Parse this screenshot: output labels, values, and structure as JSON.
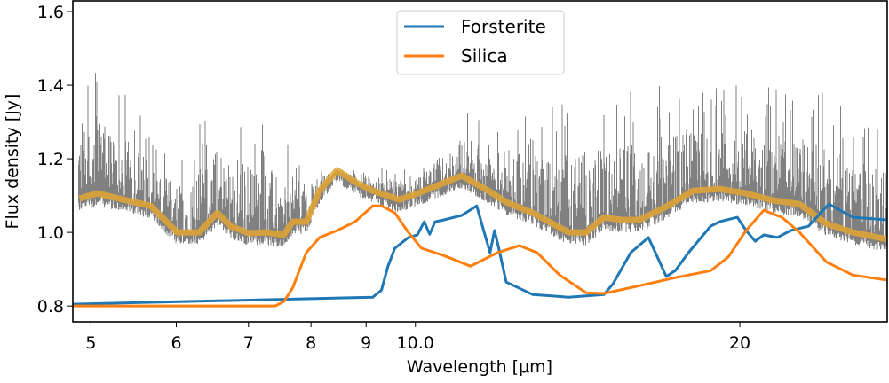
{
  "chart_data": {
    "type": "line",
    "title": "",
    "xlabel": "Wavelength [μm]",
    "ylabel": "Flux density [Jy]",
    "xscale": "log",
    "xlim": [
      4.81,
      27.4
    ],
    "ylim": [
      0.757,
      1.629
    ],
    "xticks": [
      5,
      6,
      7,
      8,
      9,
      10,
      20
    ],
    "xtick_labels": [
      "5",
      "6",
      "7",
      "8",
      "9",
      "10.0",
      "20"
    ],
    "yticks": [
      0.8,
      1.0,
      1.2,
      1.4,
      1.6
    ],
    "ytick_labels": [
      "0.8",
      "1.0",
      "1.2",
      "1.4",
      "1.6"
    ],
    "grid": false,
    "legend_position": "top-center",
    "series": [
      {
        "name": "Forsterite",
        "color": "#1f77b4",
        "x": [
          4.8,
          9.13,
          9.3,
          9.43,
          9.57,
          9.85,
          10.04,
          10.19,
          10.31,
          10.43,
          10.63,
          11.04,
          11.4,
          11.57,
          11.73,
          11.84,
          11.95,
          12.14,
          12.85,
          13.87,
          14.96,
          15.25,
          15.84,
          16.45,
          16.77,
          17.09,
          17.42,
          17.92,
          18.79,
          19.15,
          19.89,
          20.27,
          20.67,
          21.05,
          21.67,
          22.3,
          23.16,
          24.19,
          25.46,
          27.42
        ],
        "y": [
          0.805,
          0.824,
          0.843,
          0.908,
          0.957,
          0.986,
          0.993,
          1.029,
          0.995,
          1.029,
          1.034,
          1.046,
          1.072,
          1.005,
          0.945,
          1.005,
          0.957,
          0.865,
          0.831,
          0.824,
          0.831,
          0.86,
          0.945,
          0.986,
          0.933,
          0.88,
          0.896,
          0.945,
          1.017,
          1.029,
          1.041,
          1.005,
          0.976,
          0.993,
          0.986,
          1.005,
          1.017,
          1.077,
          1.041,
          1.034
        ]
      },
      {
        "name": "Silica",
        "color": "#ff7f0e",
        "x": [
          4.8,
          7.41,
          7.55,
          7.69,
          7.92,
          8.15,
          8.46,
          8.79,
          9.13,
          9.3,
          9.57,
          9.85,
          10.13,
          10.63,
          11.25,
          11.91,
          12.49,
          12.97,
          13.61,
          14.4,
          14.96,
          16.14,
          17.42,
          18.79,
          19.51,
          20.27,
          21.05,
          21.88,
          22.72,
          24.05,
          25.46,
          27.42
        ],
        "y": [
          0.8,
          0.8,
          0.812,
          0.848,
          0.945,
          0.986,
          1.005,
          1.029,
          1.072,
          1.072,
          1.053,
          1.0,
          0.957,
          0.937,
          0.908,
          0.945,
          0.964,
          0.945,
          0.884,
          0.836,
          0.834,
          0.855,
          0.877,
          0.896,
          0.933,
          1.005,
          1.06,
          1.041,
          1.0,
          0.92,
          0.884,
          0.87
        ]
      },
      {
        "color": "#e3a634",
        "x": [
          4.88,
          5.07,
          5.36,
          5.68,
          6.01,
          6.3,
          6.55,
          6.74,
          7.0,
          7.27,
          7.55,
          7.69,
          7.92,
          8.15,
          8.46,
          8.79,
          9.13,
          9.66,
          9.94,
          10.43,
          11.04,
          11.69,
          12.14,
          12.85,
          13.87,
          14.4,
          14.96,
          15.54,
          16.14,
          17.09,
          18.09,
          19.15,
          20.27,
          21.46,
          22.72,
          24.05,
          25.46,
          27.42
        ],
        "y": [
          1.092,
          1.106,
          1.089,
          1.072,
          1.0,
          1.0,
          1.053,
          1.017,
          0.998,
          1.0,
          0.993,
          1.029,
          1.029,
          1.113,
          1.169,
          1.137,
          1.113,
          1.089,
          1.101,
          1.125,
          1.154,
          1.113,
          1.082,
          1.053,
          1.0,
          1.0,
          1.041,
          1.034,
          1.034,
          1.07,
          1.113,
          1.118,
          1.106,
          1.087,
          1.077,
          1.024,
          1.0,
          0.981
        ]
      },
      {
        "color": "#808080",
        "x": [
          4.87,
          5.0,
          5.5,
          6.0,
          6.6,
          7.3,
          8.0,
          9.0,
          10.0,
          11.0,
          13.0,
          15.0,
          18.0,
          20.0,
          24.0,
          27.4
        ],
        "y_upper": [
          1.45,
          1.42,
          1.3,
          1.18,
          1.32,
          1.25,
          1.17,
          1.17,
          1.16,
          1.3,
          1.28,
          1.33,
          1.36,
          1.36,
          1.32,
          1.25
        ]
      }
    ]
  }
}
